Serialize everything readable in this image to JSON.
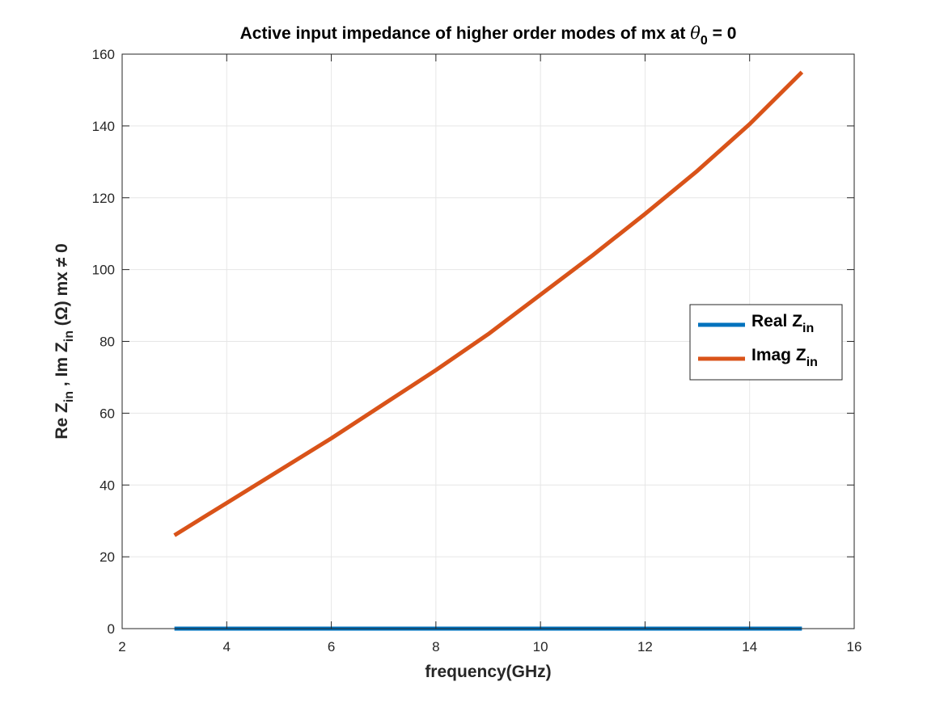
{
  "chart_data": {
    "type": "line",
    "title": {
      "main": "Active input impedance of higher order modes of mx at ",
      "theta": "θ",
      "theta_sub": "0",
      "tail": " = 0"
    },
    "xlabel": "frequency(GHz)",
    "ylabel": {
      "p1": "Re Z",
      "sub1": "in",
      "p2": " , Im Z",
      "sub2": "in",
      "p3": "  (Ω) mx ≠ 0"
    },
    "xlim": [
      2,
      16
    ],
    "ylim": [
      0,
      160
    ],
    "xticks": [
      2,
      4,
      6,
      8,
      10,
      12,
      14,
      16
    ],
    "yticks": [
      0,
      20,
      40,
      60,
      80,
      100,
      120,
      140,
      160
    ],
    "xtick_labels": [
      "2",
      "4",
      "6",
      "8",
      "10",
      "12",
      "14",
      "16"
    ],
    "ytick_labels": [
      "0",
      "20",
      "40",
      "60",
      "80",
      "100",
      "120",
      "140",
      "160"
    ],
    "grid": true,
    "legend_position": "east",
    "series": [
      {
        "name": "Real Z",
        "name_sub": "in",
        "color": "#0072BD",
        "x": [
          3,
          15
        ],
        "y": [
          0,
          0
        ]
      },
      {
        "name": "Imag Z",
        "name_sub": "in",
        "color": "#D95319",
        "x": [
          3,
          4,
          5,
          6,
          7,
          8,
          9,
          10,
          11,
          12,
          13,
          14,
          15
        ],
        "y": [
          26,
          35,
          44,
          53,
          62.5,
          72,
          82,
          93,
          104,
          115.5,
          127.5,
          140.5,
          155
        ]
      }
    ]
  }
}
